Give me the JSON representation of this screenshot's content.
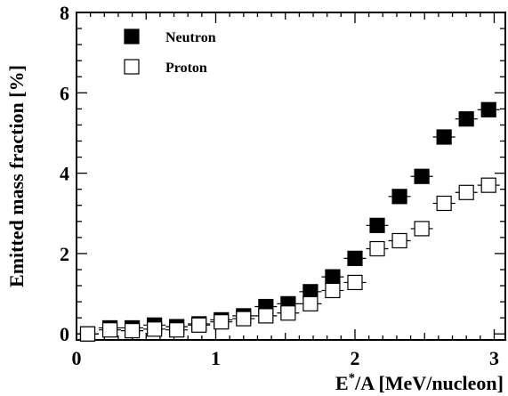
{
  "chart_data": {
    "type": "scatter",
    "xlabel_main": "E",
    "xlabel_sup": "*",
    "xlabel_rest": "/A [MeV/nucleon]",
    "ylabel": "Emitted mass fraction [%]",
    "xlim": [
      0,
      3.08
    ],
    "ylim": [
      -0.15,
      8
    ],
    "x_ticks": [
      0,
      1,
      2,
      3
    ],
    "y_ticks": [
      0,
      2,
      4,
      6,
      8
    ],
    "x_tick_labels": [
      "0",
      "1",
      "2",
      "3"
    ],
    "y_tick_labels": [
      "0",
      "2",
      "4",
      "6",
      "8"
    ],
    "x_error_halfwidth": 0.08,
    "legend_position": "top-left",
    "grid": false,
    "series": [
      {
        "name": "Neutron",
        "marker": "filled-square",
        "color": "#000000",
        "x": [
          0.08,
          0.24,
          0.4,
          0.56,
          0.72,
          0.88,
          1.04,
          1.2,
          1.36,
          1.52,
          1.68,
          1.84,
          2.0,
          2.16,
          2.32,
          2.48,
          2.64,
          2.8,
          2.96
        ],
        "y": [
          0.0,
          0.15,
          0.15,
          0.22,
          0.18,
          0.25,
          0.35,
          0.45,
          0.68,
          0.75,
          1.05,
          1.42,
          1.88,
          2.7,
          3.42,
          3.92,
          4.9,
          5.35,
          5.58
        ]
      },
      {
        "name": "Proton",
        "marker": "open-square",
        "color": "#000000",
        "x": [
          0.08,
          0.24,
          0.4,
          0.56,
          0.72,
          0.88,
          1.04,
          1.2,
          1.36,
          1.52,
          1.68,
          1.84,
          2.0,
          2.16,
          2.32,
          2.48,
          2.64,
          2.8,
          2.96
        ],
        "y": [
          0.0,
          0.1,
          0.08,
          0.12,
          0.1,
          0.22,
          0.3,
          0.38,
          0.45,
          0.52,
          0.75,
          1.08,
          1.28,
          2.12,
          2.32,
          2.62,
          3.25,
          3.52,
          3.7
        ]
      }
    ]
  }
}
